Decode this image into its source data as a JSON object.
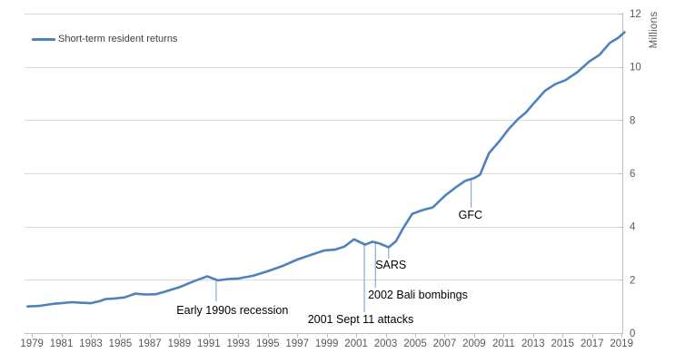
{
  "legend": {
    "label": "Short-term resident returns"
  },
  "colors": {
    "series": "#4F81BD",
    "callout": "#6B9BD2",
    "gridline": "#D9D9D9",
    "axis": "#BFBFBF",
    "tick_label": "#595959",
    "annotation_text": "#000000",
    "background": "#FFFFFF"
  },
  "chart_data": {
    "type": "line",
    "title": "",
    "xlabel": "",
    "ylabel": "Millions",
    "ylim": [
      0,
      12
    ],
    "xlim": [
      1978.5,
      2019.05
    ],
    "grid": "horizontal",
    "legend_position": "top-left",
    "x_ticks": [
      1979,
      1981,
      1983,
      1985,
      1987,
      1989,
      1991,
      1993,
      1995,
      1997,
      1999,
      2001,
      2003,
      2005,
      2007,
      2009,
      2011,
      2013,
      2015,
      2017,
      2019
    ],
    "y_ticks": [
      0,
      2,
      4,
      6,
      8,
      10,
      12
    ],
    "series": [
      {
        "name": "Short-term resident returns",
        "points": [
          [
            1978.7,
            1.0
          ],
          [
            1979.5,
            1.02
          ],
          [
            1980.0,
            1.06
          ],
          [
            1980.5,
            1.1
          ],
          [
            1981.0,
            1.12
          ],
          [
            1981.7,
            1.16
          ],
          [
            1982.3,
            1.14
          ],
          [
            1983.0,
            1.12
          ],
          [
            1983.6,
            1.2
          ],
          [
            1984.0,
            1.28
          ],
          [
            1984.6,
            1.3
          ],
          [
            1985.3,
            1.34
          ],
          [
            1986.0,
            1.48
          ],
          [
            1986.7,
            1.45
          ],
          [
            1987.4,
            1.46
          ],
          [
            1988.0,
            1.55
          ],
          [
            1989.0,
            1.72
          ],
          [
            1990.0,
            1.95
          ],
          [
            1990.9,
            2.13
          ],
          [
            1991.6,
            1.98
          ],
          [
            1992.3,
            2.03
          ],
          [
            1993.0,
            2.05
          ],
          [
            1994.0,
            2.15
          ],
          [
            1995.0,
            2.32
          ],
          [
            1996.0,
            2.52
          ],
          [
            1997.0,
            2.76
          ],
          [
            1998.0,
            2.95
          ],
          [
            1998.8,
            3.1
          ],
          [
            1999.6,
            3.14
          ],
          [
            2000.2,
            3.25
          ],
          [
            2000.85,
            3.52
          ],
          [
            2001.6,
            3.32
          ],
          [
            2002.1,
            3.43
          ],
          [
            2002.6,
            3.36
          ],
          [
            2003.2,
            3.22
          ],
          [
            2003.7,
            3.45
          ],
          [
            2004.2,
            3.95
          ],
          [
            2004.8,
            4.48
          ],
          [
            2005.5,
            4.62
          ],
          [
            2006.2,
            4.72
          ],
          [
            2007.0,
            5.15
          ],
          [
            2007.7,
            5.45
          ],
          [
            2008.4,
            5.72
          ],
          [
            2009.0,
            5.82
          ],
          [
            2009.4,
            5.95
          ],
          [
            2010.0,
            6.75
          ],
          [
            2010.7,
            7.2
          ],
          [
            2011.4,
            7.7
          ],
          [
            2012.0,
            8.05
          ],
          [
            2012.5,
            8.28
          ],
          [
            2013.0,
            8.6
          ],
          [
            2013.8,
            9.1
          ],
          [
            2014.5,
            9.35
          ],
          [
            2015.2,
            9.5
          ],
          [
            2016.0,
            9.8
          ],
          [
            2016.8,
            10.2
          ],
          [
            2017.5,
            10.45
          ],
          [
            2018.2,
            10.9
          ],
          [
            2018.8,
            11.1
          ],
          [
            2019.2,
            11.3
          ]
        ]
      }
    ],
    "annotations": [
      {
        "label": "Early 1990s recession",
        "x": 1991.5,
        "line_from": 1.95,
        "line_to": 1.19,
        "text_x": 1992.6,
        "text_y": 0.72,
        "anchor": "middle"
      },
      {
        "label": "2001 Sept 11 attacks",
        "x": 2001.55,
        "line_from": 3.33,
        "line_to": 0.78,
        "text_x": 2001.3,
        "text_y": 0.375,
        "anchor": "middle"
      },
      {
        "label": "2002 Bali bombings",
        "x": 2002.3,
        "line_from": 3.4,
        "line_to": 1.7,
        "text_x": 2001.8,
        "text_y": 1.3,
        "anchor": "start"
      },
      {
        "label": "SARS",
        "x": 2003.2,
        "line_from": 3.22,
        "line_to": 2.8,
        "text_x": 2003.35,
        "text_y": 2.42,
        "anchor": "middle"
      },
      {
        "label": "GFC",
        "x": 2008.8,
        "line_from": 5.77,
        "line_to": 4.71,
        "text_x": 2008.75,
        "text_y": 4.3,
        "anchor": "middle"
      }
    ]
  }
}
